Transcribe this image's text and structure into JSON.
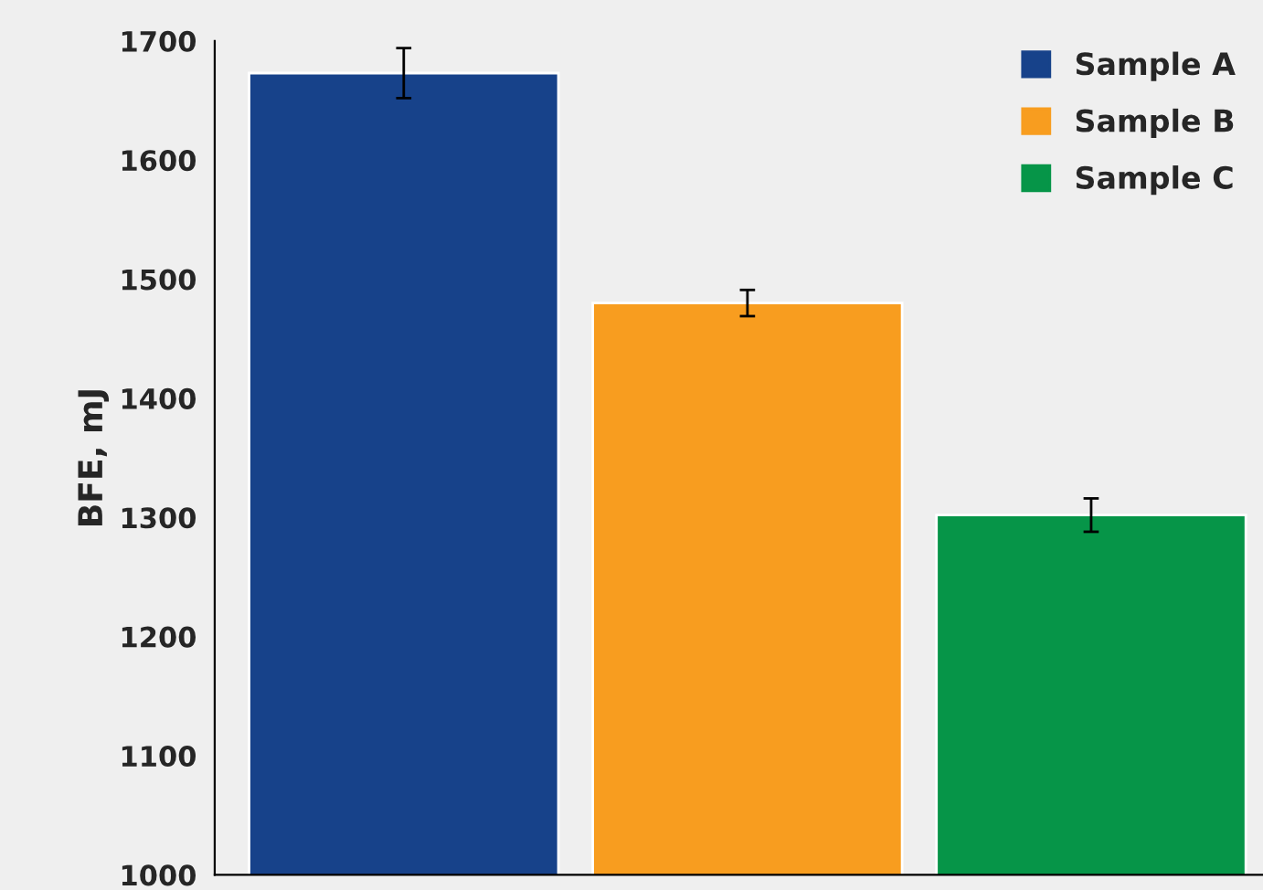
{
  "chart_data": {
    "type": "bar",
    "ylabel": "BFE, mJ",
    "categories": [
      null,
      null,
      null
    ],
    "series": [
      {
        "name": "Sample A",
        "color": "#17428a",
        "values": [
          1673,
          null,
          null
        ],
        "errors": [
          21,
          null,
          null
        ]
      },
      {
        "name": "Sample B",
        "color": "#f89d1f",
        "values": [
          null,
          1480,
          null
        ],
        "errors": [
          null,
          11,
          null
        ]
      },
      {
        "name": "Sample C",
        "color": "#069548",
        "values": [
          null,
          null,
          1302
        ],
        "errors": [
          null,
          null,
          14
        ]
      }
    ],
    "ylim": [
      1000,
      1700
    ],
    "yticks": [
      1000,
      1100,
      1200,
      1300,
      1400,
      1500,
      1600,
      1700
    ],
    "grid": false,
    "legend": "top right"
  }
}
